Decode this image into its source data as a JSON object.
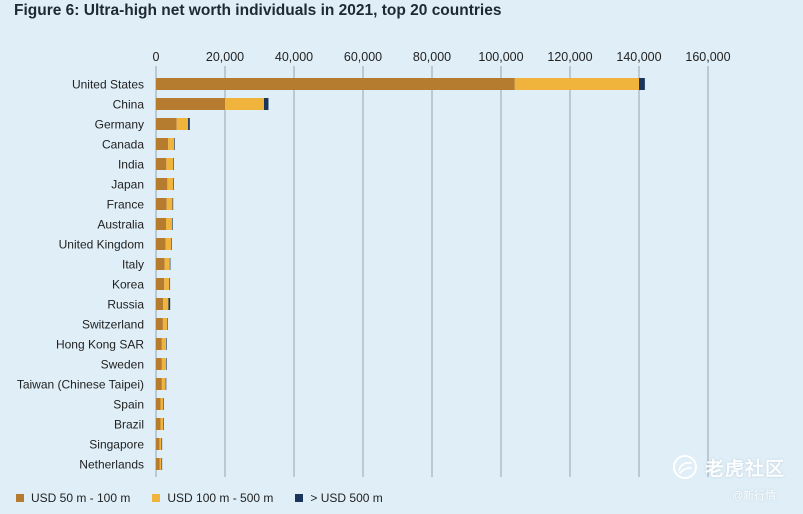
{
  "chart_data": {
    "type": "bar",
    "orientation": "horizontal",
    "stacked": true,
    "title": "Figure 6: Ultra-high net worth individuals in 2021, top 20 countries",
    "xlabel": "",
    "ylabel": "",
    "xlim": [
      0,
      160000
    ],
    "x_ticks": [
      "0",
      "20,000",
      "40,000",
      "60,000",
      "80,000",
      "100,000",
      "120,000",
      "140,000",
      "160,000"
    ],
    "x_tick_values": [
      0,
      20000,
      40000,
      60000,
      80000,
      100000,
      120000,
      140000,
      160000
    ],
    "grid": true,
    "legend_position": "bottom-left",
    "categories": [
      "United States",
      "China",
      "Germany",
      "Canada",
      "India",
      "Japan",
      "France",
      "Australia",
      "United Kingdom",
      "Italy",
      "Korea",
      "Russia",
      "Switzerland",
      "Hong Kong SAR",
      "Sweden",
      "Taiwan (Chinese Taipei)",
      "Spain",
      "Brazil",
      "Singapore",
      "Netherlands"
    ],
    "series": [
      {
        "name": "USD 50 m - 100 m",
        "color": "#b57b2f",
        "values": [
          104000,
          20000,
          6000,
          3500,
          3000,
          3300,
          3100,
          2900,
          2800,
          2500,
          2400,
          2100,
          2000,
          1700,
          1700,
          1700,
          1300,
          1300,
          1000,
          1100
        ]
      },
      {
        "name": "USD 100 m - 500 m",
        "color": "#f0b43c",
        "values": [
          36000,
          11300,
          3300,
          1800,
          2000,
          1700,
          1700,
          1800,
          1600,
          1500,
          1500,
          1500,
          1200,
          1200,
          1200,
          1100,
          800,
          800,
          600,
          500
        ]
      },
      {
        "name": "> USD 500 m",
        "color": "#1a355b",
        "values": [
          1700,
          1300,
          500,
          100,
          150,
          100,
          100,
          100,
          100,
          100,
          100,
          500,
          100,
          150,
          100,
          100,
          50,
          50,
          50,
          50
        ]
      }
    ]
  },
  "watermark": {
    "main": "老虎社区",
    "sub": "@新行情"
  }
}
